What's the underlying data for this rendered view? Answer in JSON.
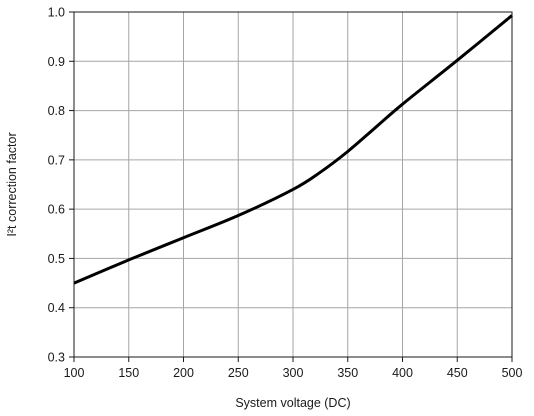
{
  "chart_data": {
    "type": "line",
    "title": "",
    "xlabel": "System voltage (DC)",
    "ylabel": "I²t correction factor",
    "xlim": [
      100,
      500
    ],
    "ylim": [
      0.3,
      1.0
    ],
    "x_ticks": [
      100,
      150,
      200,
      250,
      300,
      350,
      400,
      450,
      500
    ],
    "y_ticks": [
      0.3,
      0.4,
      0.5,
      0.6,
      0.7,
      0.8,
      0.9,
      1.0
    ],
    "x_tick_labels": [
      "100",
      "150",
      "200",
      "250",
      "300",
      "350",
      "400",
      "450",
      "500"
    ],
    "y_tick_labels": [
      "0.3",
      "0.4",
      "0.5",
      "0.6",
      "0.7",
      "0.8",
      "0.9",
      "1.0"
    ],
    "grid": true,
    "legend": "none",
    "line_color": "#000000",
    "grid_color": "#a6a6a6",
    "series": [
      {
        "x": [
          100,
          150,
          200,
          250,
          300,
          325,
          350,
          375,
          400,
          450,
          500
        ],
        "y": [
          0.45,
          0.497,
          0.542,
          0.587,
          0.64,
          0.675,
          0.717,
          0.765,
          0.813,
          0.902,
          0.993
        ]
      }
    ]
  }
}
